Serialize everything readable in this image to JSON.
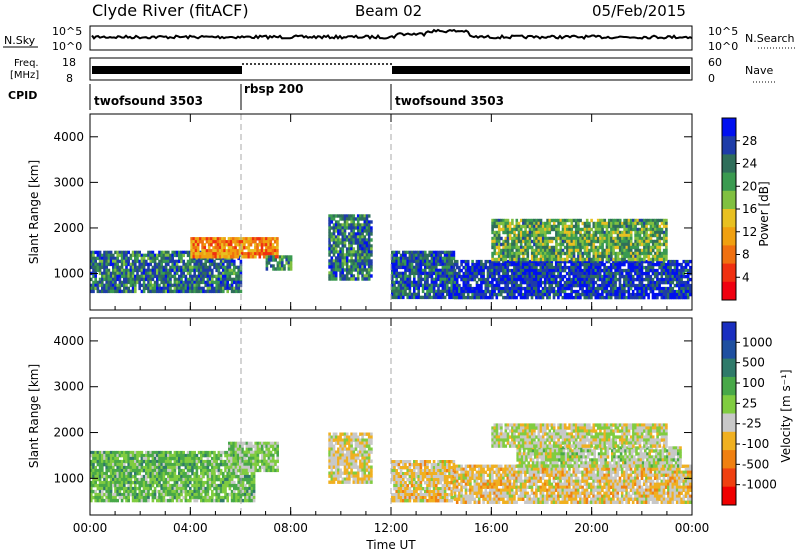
{
  "header": {
    "station": "Clyde River (fitACF)",
    "beam": "Beam 02",
    "date": "05/Feb/2015"
  },
  "panels": {
    "nsky": {
      "label": "N.Sky",
      "ticks": [
        "10^5",
        "10^0"
      ],
      "right_label": "N.Search",
      "right_ticks": [
        "10^5",
        "10^0"
      ]
    },
    "freq": {
      "label_line1": "Freq.",
      "label_line2": "[MHz]",
      "ticks": [
        "18",
        "8"
      ],
      "right_label": "Nave",
      "right_ticks": [
        "60",
        "0"
      ]
    },
    "cpid": {
      "label": "CPID",
      "segments": [
        {
          "name": "twofsound 3503",
          "start_h": 0,
          "end_h": 6
        },
        {
          "name": "rbsp 200",
          "start_h": 6,
          "end_h": 12
        },
        {
          "name": "twofsound 3503",
          "start_h": 12,
          "end_h": 24
        }
      ]
    }
  },
  "colors": {
    "power": [
      "#0010f0",
      "#1e3ca8",
      "#2f6e5a",
      "#3a9a50",
      "#80c040",
      "#e8c020",
      "#f0a010",
      "#f07010",
      "#f03010",
      "#f00010"
    ],
    "velocity": [
      "#1a2fc0",
      "#1e4fa0",
      "#2f7a6a",
      "#48a848",
      "#80cc40",
      "#c8c8c8",
      "#f0b020",
      "#f08010",
      "#f04010",
      "#f00000"
    ]
  },
  "chart_data": [
    {
      "type": "heatmap",
      "title": "",
      "ylabel": "Slant Range [km]",
      "xlabel": "",
      "x_ticks": [
        "00:00",
        "04:00",
        "08:00",
        "12:00",
        "16:00",
        "20:00",
        "00:00"
      ],
      "y_ticks": [
        "1000",
        "2000",
        "3000",
        "4000"
      ],
      "xlim": [
        0,
        24
      ],
      "ylim": [
        200,
        4500
      ],
      "colorbar": {
        "label": "Power [dB]",
        "ticks": [
          "28",
          "24",
          "20",
          "16",
          "12",
          "8",
          "4"
        ],
        "range": [
          0,
          32
        ]
      },
      "series": [
        {
          "start_h": 0.0,
          "end_h": 6.0,
          "range_low": 600,
          "range_high": 1500,
          "level": 24
        },
        {
          "start_h": 4.0,
          "end_h": 7.5,
          "range_low": 1400,
          "range_high": 1800,
          "level": 10
        },
        {
          "start_h": 7.0,
          "end_h": 8.0,
          "range_low": 1100,
          "range_high": 1400,
          "level": 22
        },
        {
          "start_h": 9.5,
          "end_h": 11.2,
          "range_low": 900,
          "range_high": 2300,
          "level": 24
        },
        {
          "start_h": 12.0,
          "end_h": 14.5,
          "range_low": 500,
          "range_high": 1500,
          "level": 26
        },
        {
          "start_h": 14.5,
          "end_h": 23.9,
          "range_low": 500,
          "range_high": 1300,
          "level": 28
        },
        {
          "start_h": 16.0,
          "end_h": 23.0,
          "range_low": 1300,
          "range_high": 2200,
          "level": 20
        }
      ]
    },
    {
      "type": "heatmap",
      "title": "",
      "ylabel": "Slant Range [km]",
      "xlabel": "Time UT",
      "x_ticks": [
        "00:00",
        "04:00",
        "08:00",
        "12:00",
        "16:00",
        "20:00",
        "00:00"
      ],
      "y_ticks": [
        "1000",
        "2000",
        "3000",
        "4000"
      ],
      "xlim": [
        0,
        24
      ],
      "ylim": [
        200,
        4500
      ],
      "colorbar": {
        "label": "Velocity [m s⁻¹]",
        "ticks": [
          "1000",
          "500",
          "100",
          "25",
          "-25",
          "-100",
          "-500",
          "-1000"
        ],
        "range": [
          -1000,
          1000
        ]
      },
      "series": [
        {
          "start_h": 0.0,
          "end_h": 6.5,
          "range_low": 500,
          "range_high": 1600,
          "level": 200
        },
        {
          "start_h": 5.5,
          "end_h": 7.5,
          "range_low": 1200,
          "range_high": 1800,
          "level": 80
        },
        {
          "start_h": 9.5,
          "end_h": 11.2,
          "range_low": 900,
          "range_high": 2000,
          "level": -150
        },
        {
          "start_h": 12.0,
          "end_h": 14.5,
          "range_low": 500,
          "range_high": 1400,
          "level": -200
        },
        {
          "start_h": 14.5,
          "end_h": 23.9,
          "range_low": 500,
          "range_high": 1300,
          "level": -200
        },
        {
          "start_h": 17.0,
          "end_h": 23.5,
          "range_low": 1300,
          "range_high": 1700,
          "level": 0
        },
        {
          "start_h": 16.0,
          "end_h": 23.0,
          "range_low": 1700,
          "range_high": 2200,
          "level": -60
        }
      ]
    }
  ]
}
